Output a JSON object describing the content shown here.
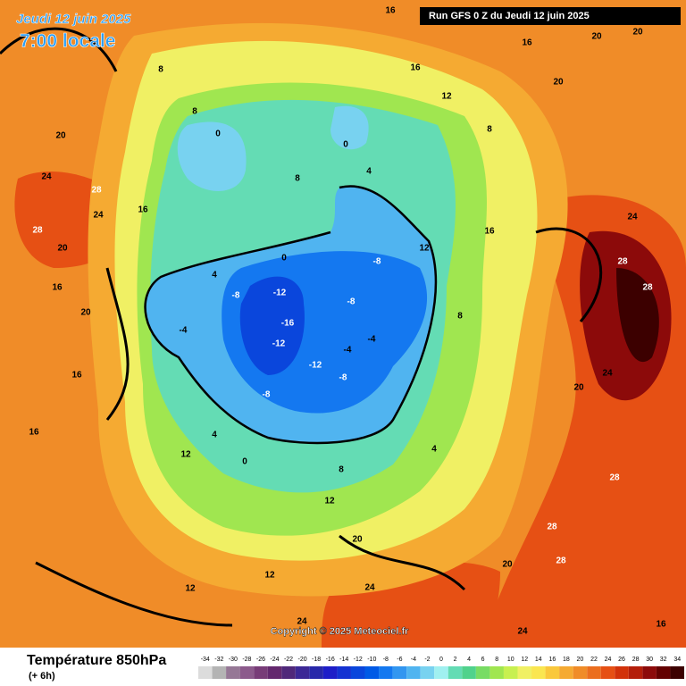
{
  "header": {
    "date": "Jeudi 12 juin 2025",
    "time": "7:00 locale",
    "run": "Run GFS 0 Z du Jeudi 12 juin 2025"
  },
  "map": {
    "copyright": "Copyright © 2025 Meteociel.fr",
    "labels": [
      20,
      24,
      28,
      28,
      24,
      16,
      20,
      16,
      20,
      16,
      16,
      12,
      8,
      8,
      0,
      0,
      4,
      8,
      4,
      -4,
      -8,
      -12,
      -16,
      -12,
      -8,
      -12,
      -8,
      -8,
      -4,
      -4,
      -8,
      0,
      0,
      4,
      8,
      12,
      12,
      12,
      20,
      24,
      24,
      28,
      28,
      28,
      28,
      28,
      24,
      24,
      20,
      16,
      20,
      20,
      16,
      12,
      8,
      16,
      12,
      8,
      4,
      16,
      20,
      16,
      24,
      20
    ]
  },
  "legend": {
    "title": "Température 850hPa",
    "step": "(+ 6h)",
    "ticks": [
      -34,
      -32,
      -30,
      -28,
      -26,
      -24,
      -22,
      -20,
      -18,
      -16,
      -14,
      -12,
      -10,
      -8,
      -6,
      -4,
      -2,
      0,
      2,
      4,
      6,
      8,
      10,
      12,
      14,
      16,
      18,
      20,
      22,
      24,
      26,
      28,
      30,
      32,
      34
    ],
    "colors": [
      "#dcdcdc",
      "#b4b4b4",
      "#967896",
      "#8c5a8c",
      "#783c78",
      "#64286e",
      "#50287a",
      "#3c2896",
      "#2828aa",
      "#1e1ec8",
      "#1432d2",
      "#0a46dc",
      "#005ae6",
      "#1478f0",
      "#3296f0",
      "#50b4f0",
      "#78d2f0",
      "#a0f0f0",
      "#64dcb4",
      "#50d28c",
      "#78dc64",
      "#a0e650",
      "#c8f050",
      "#f0f064",
      "#fae650",
      "#fac83c",
      "#f5aa32",
      "#f08c28",
      "#eb6e1e",
      "#e65014",
      "#d2320a",
      "#b41e0a",
      "#8c0a0a",
      "#640000",
      "#3c0000"
    ]
  }
}
